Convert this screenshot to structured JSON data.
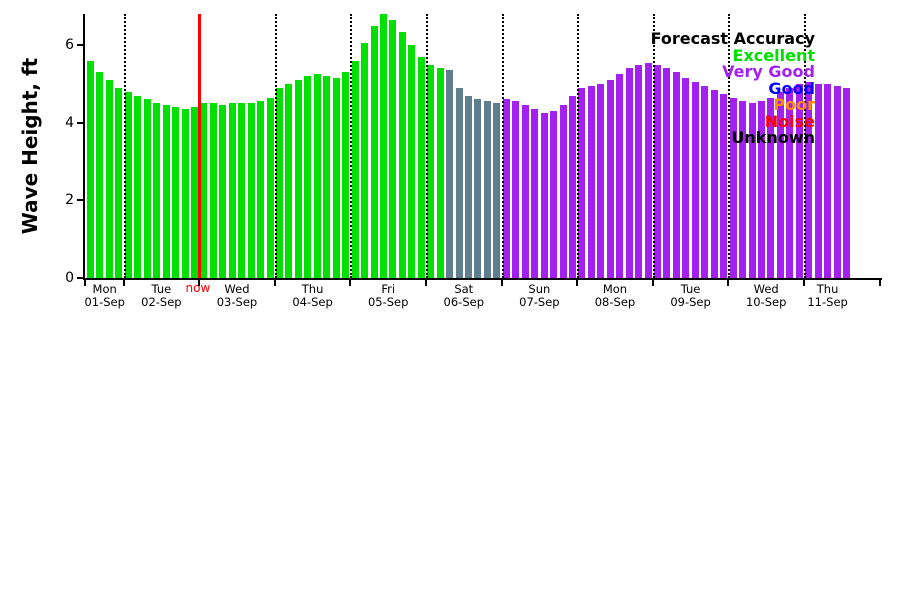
{
  "chart_data": {
    "type": "bar",
    "title": "",
    "ylabel": "Wave Height, ft",
    "xlabel": "",
    "yticks": [
      0,
      2,
      4,
      6
    ],
    "ylim": [
      0,
      6.8
    ],
    "bar_interval_hours": 3,
    "grid": "vertical-dotted-at-day-boundaries",
    "days": [
      {
        "dow": "Mon",
        "date": "01-Sep",
        "bar_count": 4
      },
      {
        "dow": "Tue",
        "date": "02-Sep",
        "bar_count": 8
      },
      {
        "dow": "Wed",
        "date": "03-Sep",
        "bar_count": 8
      },
      {
        "dow": "Thu",
        "date": "04-Sep",
        "bar_count": 8
      },
      {
        "dow": "Fri",
        "date": "05-Sep",
        "bar_count": 8
      },
      {
        "dow": "Sat",
        "date": "06-Sep",
        "bar_count": 8
      },
      {
        "dow": "Sun",
        "date": "07-Sep",
        "bar_count": 8
      },
      {
        "dow": "Mon",
        "date": "08-Sep",
        "bar_count": 8
      },
      {
        "dow": "Tue",
        "date": "09-Sep",
        "bar_count": 8
      },
      {
        "dow": "Wed",
        "date": "10-Sep",
        "bar_count": 8
      },
      {
        "dow": "Thu",
        "date": "11-Sep",
        "bar_count": 5
      }
    ],
    "heights_ft": [
      5.6,
      5.3,
      5.1,
      4.9,
      4.8,
      4.7,
      4.6,
      4.5,
      4.45,
      4.4,
      4.35,
      4.4,
      4.5,
      4.5,
      4.45,
      4.5,
      4.5,
      4.5,
      4.55,
      4.65,
      4.9,
      5.0,
      5.1,
      5.2,
      5.25,
      5.2,
      5.15,
      5.3,
      5.6,
      6.05,
      6.5,
      6.8,
      6.65,
      6.35,
      6.0,
      5.7,
      5.5,
      5.4,
      5.35,
      4.9,
      4.7,
      4.6,
      4.55,
      4.5,
      4.6,
      4.55,
      4.45,
      4.35,
      4.25,
      4.3,
      4.45,
      4.7,
      4.9,
      4.95,
      5.0,
      5.1,
      5.25,
      5.4,
      5.5,
      5.55,
      5.5,
      5.4,
      5.3,
      5.15,
      5.05,
      4.95,
      4.85,
      4.75,
      4.65,
      4.55,
      4.5,
      4.55,
      4.65,
      4.8,
      4.9,
      5.0,
      5.05,
      5.0,
      5.0,
      4.95,
      4.9
    ],
    "accuracy_runs": [
      {
        "acc": "excellent",
        "count": 38
      },
      {
        "acc": "mixed",
        "count": 6
      },
      {
        "acc": "very_good",
        "count": 37
      }
    ],
    "colors": {
      "excellent": "#00e000",
      "mixed": "#5f7f8f",
      "very_good": "#a420f0",
      "now_line": "#ff0000",
      "axis": "#000000"
    },
    "now": {
      "label": "now",
      "after_bar_index": 11
    },
    "legend": {
      "title": "Forecast Accuracy",
      "entries": [
        {
          "label": "Excellent",
          "color": "#00e000"
        },
        {
          "label": "Very Good",
          "color": "#a420f0"
        },
        {
          "label": "Good",
          "color": "#0000ff"
        },
        {
          "label": "Poor",
          "color": "#ff8c00"
        },
        {
          "label": "Noise",
          "color": "#ff0000"
        },
        {
          "label": "Unknown",
          "color": "#000000"
        }
      ]
    }
  }
}
